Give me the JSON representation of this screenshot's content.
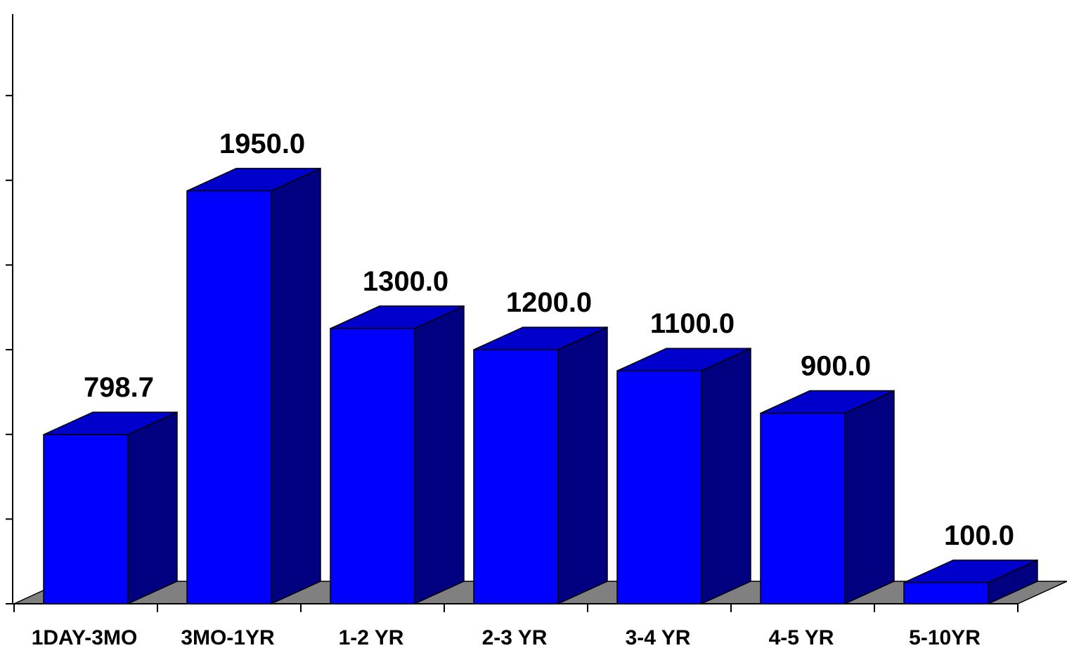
{
  "chart_data": {
    "type": "bar",
    "style": "3d-column",
    "categories": [
      "1DAY-3MO",
      "3MO-1YR",
      "1-2 YR",
      "2-3 YR",
      "3-4 YR",
      "4-5 YR",
      "5-10YR"
    ],
    "values": [
      798.7,
      1950.0,
      1300.0,
      1200.0,
      1100.0,
      900.0,
      100.0
    ],
    "data_labels": [
      "798.7",
      "1950.0",
      "1300.0",
      "1200.0",
      "1100.0",
      "900.0",
      "100.0"
    ],
    "title": "",
    "xlabel": "",
    "ylabel": "",
    "ylim": [
      0,
      2800
    ],
    "y_tick_step": 400,
    "grid": false,
    "legend": "none",
    "colors": {
      "bar_front": "#0000ff",
      "bar_side": "#000080",
      "bar_top": "#0000cc",
      "floor": "#808080",
      "axis": "#000000"
    }
  }
}
